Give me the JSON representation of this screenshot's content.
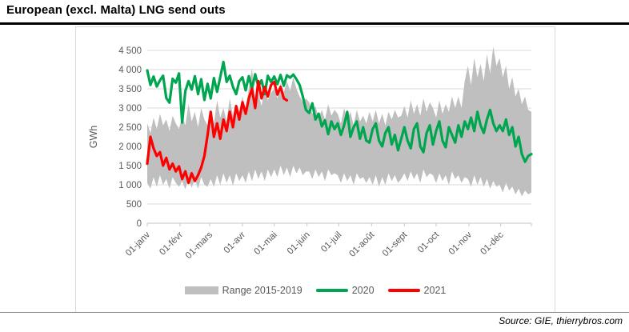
{
  "header": {
    "title": "European (excl. Malta) LNG send outs"
  },
  "source": {
    "text": "Source: GIE, thierrybros.com"
  },
  "legend": [
    {
      "label": "Range 2015-2019",
      "type": "area",
      "color": "#bfbfbf"
    },
    {
      "label": "2020",
      "type": "line",
      "color": "#00a550"
    },
    {
      "label": "2021",
      "type": "line",
      "color": "#fe0000"
    }
  ],
  "chart_data": {
    "type": "line",
    "title": "European (excl. Malta) LNG send outs",
    "xlabel": "",
    "ylabel": "GWh",
    "ylim": [
      0,
      4500
    ],
    "grid": "horizontal",
    "legend_position": "bottom",
    "colors": {
      "band": "#bfbfbf",
      "grid": "#d9d9d9",
      "axis": "#c6c6c6",
      "tick_text": "#595959"
    },
    "y_ticks": [
      {
        "v": 0,
        "label": "0"
      },
      {
        "v": 500,
        "label": "500"
      },
      {
        "v": 1000,
        "label": "1 000"
      },
      {
        "v": 1500,
        "label": "1 500"
      },
      {
        "v": 2000,
        "label": "2 000"
      },
      {
        "v": 2500,
        "label": "2 500"
      },
      {
        "v": 3000,
        "label": "3 000"
      },
      {
        "v": 3500,
        "label": "3 500"
      },
      {
        "v": 4000,
        "label": "4 000"
      },
      {
        "v": 4500,
        "label": "4 500"
      }
    ],
    "x_ticks": [
      {
        "day": 1,
        "label": "01-janv"
      },
      {
        "day": 32,
        "label": "01-févr"
      },
      {
        "day": 60,
        "label": "01-mars"
      },
      {
        "day": 91,
        "label": "01-avr"
      },
      {
        "day": 121,
        "label": "01-mai"
      },
      {
        "day": 152,
        "label": "01-juin"
      },
      {
        "day": 182,
        "label": "01-juil"
      },
      {
        "day": 213,
        "label": "01-août"
      },
      {
        "day": 244,
        "label": "01-sept"
      },
      {
        "day": 274,
        "label": "01-oct"
      },
      {
        "day": 305,
        "label": "01-nov"
      },
      {
        "day": 335,
        "label": "01-déc"
      }
    ],
    "day_start": 1,
    "day_step": 3,
    "day_max": 364,
    "series": [
      {
        "name": "Range 2015-2019 max",
        "role": "band_max",
        "values": [
          2600,
          2350,
          2750,
          2450,
          2850,
          2550,
          2700,
          2400,
          2800,
          2600,
          2450,
          2800,
          2550,
          3100,
          2650,
          2900,
          2500,
          3000,
          2700,
          2550,
          2950,
          2600,
          3200,
          2750,
          3000,
          2650,
          3250,
          2800,
          3100,
          2900,
          3300,
          2950,
          3500,
          4050,
          3100,
          3400,
          3050,
          3550,
          3200,
          3400,
          3500,
          3250,
          3650,
          3400,
          3700,
          3450,
          3800,
          3500,
          3300,
          3150,
          3250,
          3150,
          2850,
          3050,
          2750,
          2950,
          2700,
          3100,
          2800,
          2950,
          2850,
          2600,
          3000,
          2700,
          2900,
          2550,
          2950,
          2650,
          2800,
          2600,
          2900,
          2650,
          2950,
          2600,
          2850,
          2550,
          2900,
          2700,
          2950,
          2750,
          2800,
          3050,
          2750,
          3200,
          2850,
          3100,
          2800,
          3250,
          2900,
          3150,
          3000,
          2750,
          3200,
          2850,
          3100,
          2900,
          3300,
          3000,
          3300,
          3000,
          3700,
          4100,
          3600,
          4300,
          3800,
          4150,
          3700,
          4400,
          3900,
          4600,
          4100,
          4300,
          3800,
          4100,
          3500,
          3800,
          3300,
          3500,
          3100,
          3300,
          2950,
          2900
        ]
      },
      {
        "name": "Range 2015-2019 min",
        "role": "band_min",
        "values": [
          1050,
          900,
          1200,
          950,
          1250,
          1000,
          1150,
          900,
          1200,
          1050,
          950,
          1100,
          880,
          1180,
          920,
          1150,
          900,
          1200,
          1000,
          950,
          1150,
          950,
          1250,
          1000,
          1300,
          1050,
          1250,
          980,
          1300,
          1100,
          1250,
          1050,
          1350,
          1100,
          1400,
          1150,
          1350,
          1100,
          1400,
          1200,
          1400,
          1200,
          1500,
          1250,
          1450,
          1200,
          1500,
          1300,
          1450,
          1250,
          1350,
          1350,
          1150,
          1400,
          1200,
          1350,
          1100,
          1400,
          1250,
          1300,
          1250,
          1050,
          1300,
          1100,
          1250,
          1000,
          1300,
          1150,
          1200,
          1050,
          1200,
          1000,
          1250,
          950,
          1200,
          1000,
          1300,
          1100,
          1250,
          1050,
          1150,
          1300,
          1100,
          1350,
          1150,
          1300,
          1050,
          1400,
          1200,
          1300,
          1250,
          1050,
          1300,
          1100,
          1250,
          1000,
          1350,
          1150,
          1250,
          1050,
          1200,
          1150,
          950,
          1250,
          1000,
          1200,
          950,
          1150,
          900,
          1100,
          950,
          1000,
          800,
          1050,
          850,
          950,
          750,
          900,
          700,
          850,
          750,
          800
        ]
      },
      {
        "name": "2020",
        "role": "line",
        "color": "#00a550",
        "values": [
          3980,
          3600,
          3820,
          3560,
          3720,
          3840,
          3260,
          3140,
          3760,
          3660,
          3900,
          2620,
          3440,
          3700,
          3480,
          3830,
          3360,
          3750,
          3210,
          3630,
          3250,
          3780,
          3420,
          3800,
          4200,
          3680,
          3840,
          3550,
          3360,
          3700,
          3800,
          3460,
          3830,
          3510,
          3880,
          3560,
          3720,
          3360,
          3840,
          3680,
          3820,
          3620,
          3860,
          3580,
          3850,
          3790,
          3870,
          3750,
          3600,
          3300,
          2950,
          2870,
          3120,
          2700,
          2850,
          2520,
          2680,
          2320,
          2650,
          2450,
          2600,
          2300,
          2550,
          2900,
          2250,
          2500,
          2650,
          2200,
          2500,
          2150,
          2100,
          2450,
          2600,
          2150,
          2000,
          2350,
          2500,
          2050,
          2300,
          1900,
          2200,
          2500,
          2150,
          1950,
          2450,
          2600,
          2000,
          1850,
          2350,
          2550,
          2050,
          2400,
          2650,
          2150,
          1980,
          2500,
          2300,
          2100,
          2550,
          2250,
          2650,
          2450,
          2750,
          2400,
          2900,
          2550,
          2350,
          2700,
          2950,
          2600,
          2400,
          2550,
          2400,
          2700,
          2300,
          2500,
          2000,
          2250,
          1800,
          1600,
          1750,
          1800
        ]
      },
      {
        "name": "2021",
        "role": "line",
        "color": "#fe0000",
        "values": [
          1550,
          2250,
          1950,
          1750,
          1850,
          1500,
          1700,
          1400,
          1550,
          1350,
          1480,
          1150,
          1350,
          1050,
          1300,
          1100,
          1250,
          1450,
          1750,
          2300,
          2900,
          2250,
          2600,
          2200,
          2700,
          2400,
          2900,
          2500,
          3050,
          2700,
          3150,
          2850,
          3250,
          3500,
          3000,
          3700,
          3250,
          3550,
          3300,
          3600,
          3680,
          3350,
          3550,
          3250,
          3200
        ]
      }
    ]
  }
}
